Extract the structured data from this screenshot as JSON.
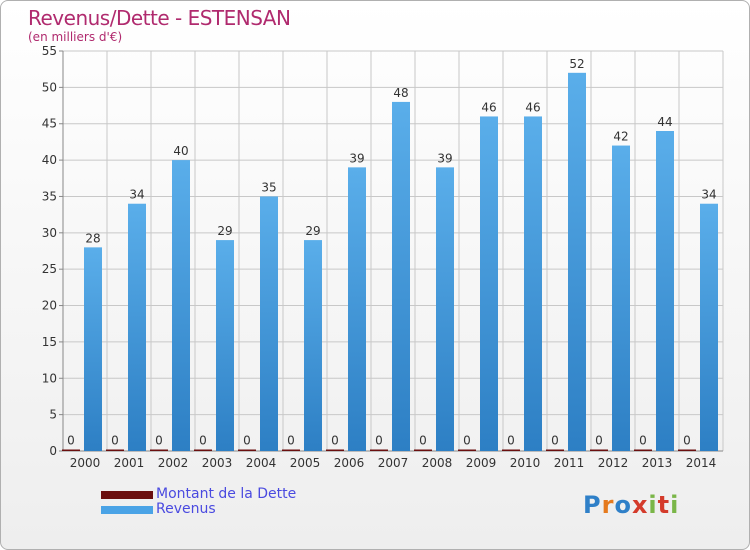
{
  "title": "Revenus/Dette - ESTENSAN",
  "subtitle": "(en milliers d'€)",
  "logo": {
    "text": "Proxiti",
    "letter_colors": [
      "#2f80c8",
      "#e57a1e",
      "#2f80c8",
      "#d43b2b",
      "#7ab648",
      "#d43b2b",
      "#7ab648"
    ]
  },
  "colors": {
    "dette": "#6b0f0f",
    "revenus": "#4aa3e6",
    "revenus_dark": "#2b7cc0",
    "grid": "#c8c8c8"
  },
  "chart_data": {
    "type": "bar",
    "title": "Revenus/Dette - ESTENSAN",
    "ylabel": "(en milliers d'€)",
    "categories": [
      "2000",
      "2001",
      "2002",
      "2003",
      "2004",
      "2005",
      "2006",
      "2007",
      "2008",
      "2009",
      "2010",
      "2011",
      "2012",
      "2013",
      "2014"
    ],
    "yticks": [
      0,
      5,
      10,
      15,
      20,
      25,
      30,
      35,
      40,
      45,
      50,
      55
    ],
    "ylim": [
      0,
      55
    ],
    "grid": true,
    "legend_position": "bottom-left",
    "series": [
      {
        "name": "Montant de la Dette",
        "values": [
          0,
          0,
          0,
          0,
          0,
          0,
          0,
          0,
          0,
          0,
          0,
          0,
          0,
          0,
          0
        ]
      },
      {
        "name": "Revenus",
        "values": [
          28,
          34,
          40,
          29,
          35,
          29,
          39,
          48,
          39,
          46,
          46,
          52,
          42,
          44,
          34
        ]
      }
    ]
  }
}
